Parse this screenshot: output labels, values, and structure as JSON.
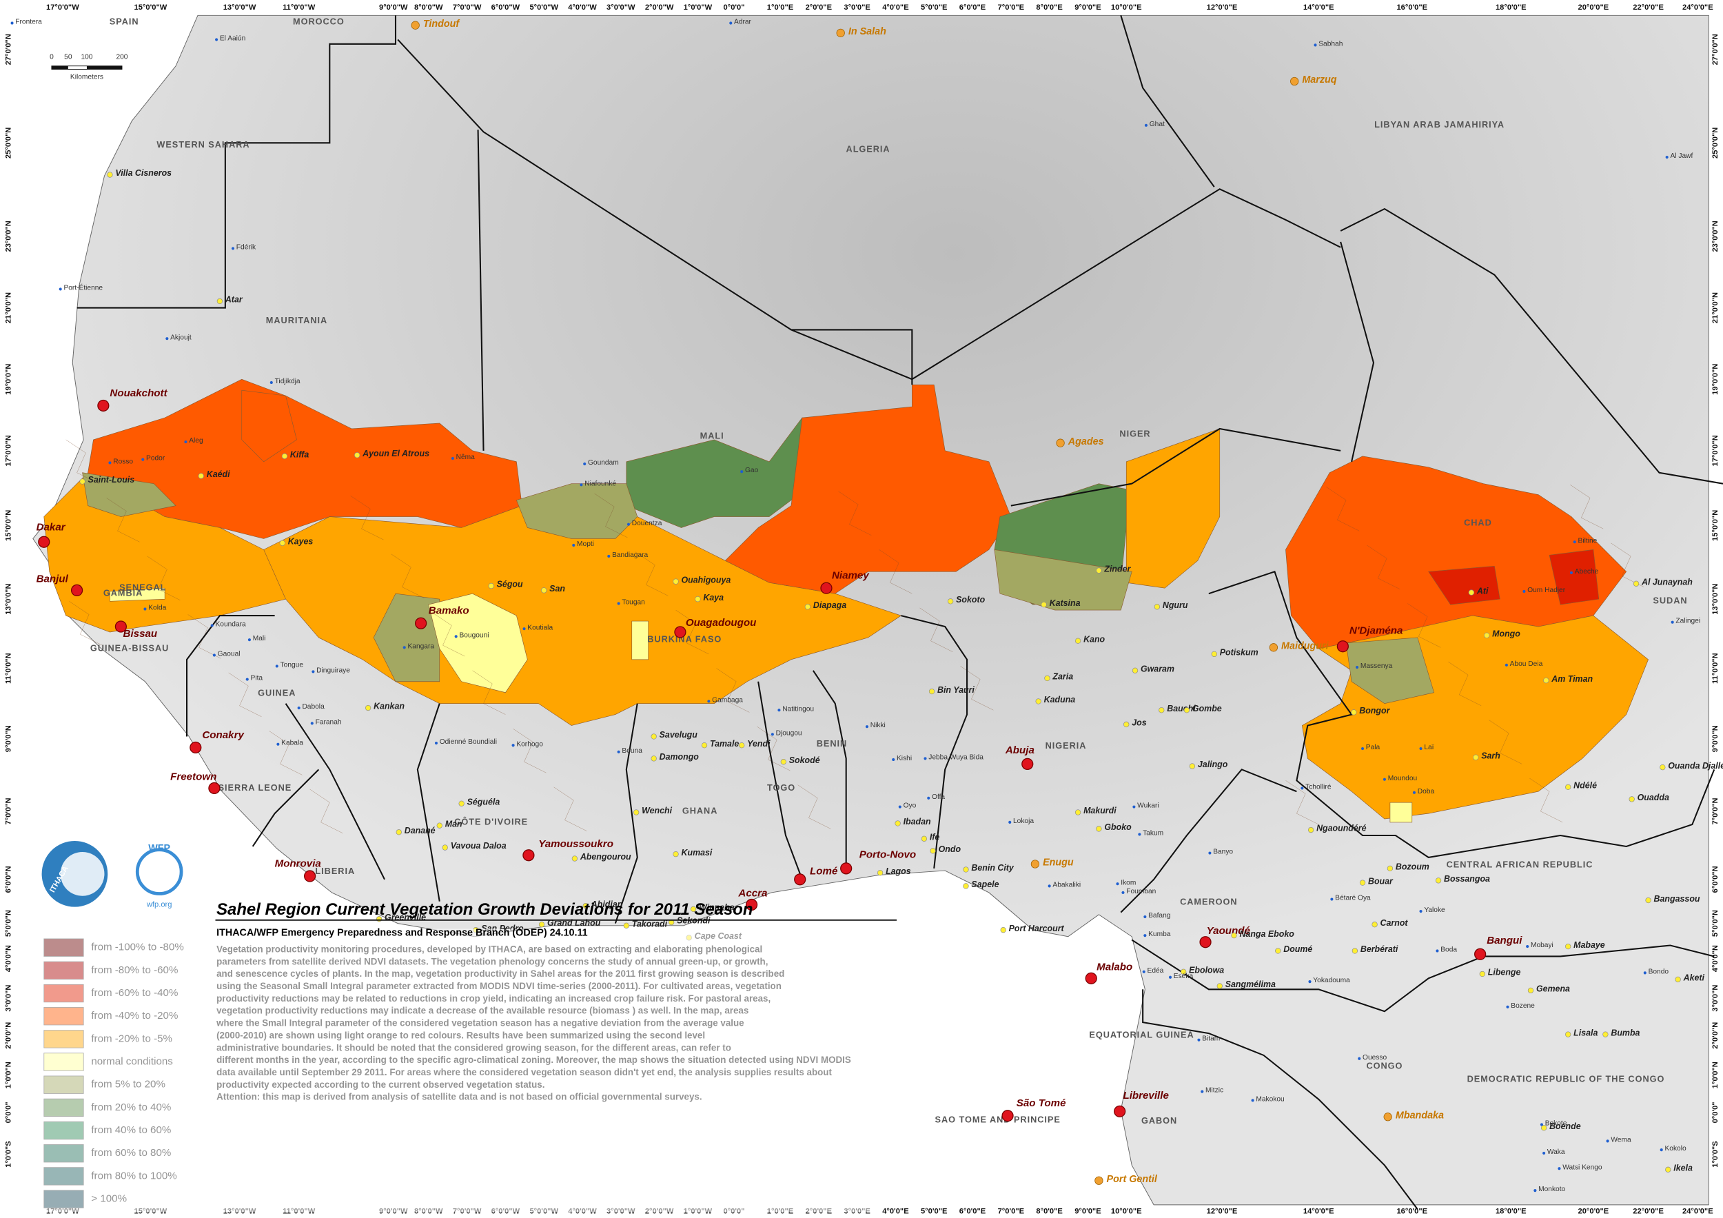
{
  "title": "Sahel Region Current Vegetation Growth Deviations for 2011 Season",
  "subtitle": "ITHACA/WFP Emergency Preparedness and Response Branch (ODEP)   24.10.11",
  "description": [
    "Vegetation productivity monitoring procedures, developed by ITHACA, are based on extracting and elaborating phenological",
    "parameters from satellite derived NDVI datasets. The vegetation phenology concerns the study of annual  green-up, or growth,",
    "and senescence cycles of plants. In the map, vegetation productivity in Sahel areas for the  2011 first growing season is described",
    "using the Seasonal Small Integral parameter extracted from MODIS NDVI time-series (2000-2011). For cultivated areas, vegetation",
    "productivity reductions may be  related to reductions in crop yield, indicating an increased crop failure risk. For pastoral areas,",
    "vegetation productivity reductions  may indicate a decrease of the available resource (biomass ) as well. In the map, areas",
    "where the Small Integral parameter of the considered vegetation season has a negative deviation from the average value",
    "(2000-2010) are shown using light orange to red colours. Results have been summarized using the second level",
    "administrative  boundaries. It should be noted that the considered growing season, for the different areas, can refer to",
    "different months in the year, according to the specific agro-climatical zoning.  Moreover, the map shows the situation detected using NDVI MODIS",
    "data available until September 29 2011. For areas where the considered vegetation season didn't yet end, the analysis supplies results about",
    "productivity expected according to the current observed vegetation status.",
    "Attention: this map is derived from analysis of satellite data and is not based on official governmental surveys."
  ],
  "legend": [
    {
      "label": "from -100% to -80%",
      "color": "#6b0000"
    },
    {
      "label": "from -80% to -60%",
      "color": "#a80000"
    },
    {
      "label": "from -60% to -40%",
      "color": "#e02000"
    },
    {
      "label": "from -40% to -20%",
      "color": "#ff5a00"
    },
    {
      "label": "from -20% to -5%",
      "color": "#ffa500"
    },
    {
      "label": "normal conditions",
      "color": "#ffff99"
    },
    {
      "label": "from 5% to 20%",
      "color": "#a3a862"
    },
    {
      "label": "from 20% to 40%",
      "color": "#5e8f4e"
    },
    {
      "label": "from 40% to 60%",
      "color": "#2e8b57"
    },
    {
      "label": "from 60% to 80%",
      "color": "#1f6f5a"
    },
    {
      "label": "from 80% to 100%",
      "color": "#1b5e5e"
    },
    {
      "label": "> 100%",
      "color": "#1a4a5a"
    }
  ],
  "logos": [
    "ITHACA",
    "WFP",
    "wfp.org"
  ],
  "scale_bar": {
    "ticks": [
      "0",
      "50",
      "100",
      "200"
    ],
    "unit": "Kilometers"
  },
  "longitude_labels": [
    "17°0'0\"W",
    "15°0'0\"W",
    "13°0'0\"W",
    "11°0'0\"W",
    "9°0'0\"W",
    "8°0'0\"W",
    "7°0'0\"W",
    "6°0'0\"W",
    "5°0'0\"W",
    "4°0'0\"W",
    "3°0'0\"W",
    "2°0'0\"W",
    "1°0'0\"W",
    "0°0'0\"",
    "1°0'0\"E",
    "2°0'0\"E",
    "3°0'0\"E",
    "4°0'0\"E",
    "5°0'0\"E",
    "6°0'0\"E",
    "7°0'0\"E",
    "8°0'0\"E",
    "9°0'0\"E",
    "10°0'0\"E",
    "12°0'0\"E",
    "14°0'0\"E",
    "16°0'0\"E",
    "18°0'0\"E",
    "20°0'0\"E",
    "22°0'0\"E",
    "24°0'0\"E"
  ],
  "latitude_labels": [
    "27°0'0\"N",
    "25°0'0\"N",
    "23°0'0\"N",
    "21°0'0\"N",
    "19°0'0\"N",
    "17°0'0\"N",
    "15°0'0\"N",
    "13°0'0\"N",
    "11°0'0\"N",
    "9°0'0\"N",
    "7°0'0\"N",
    "6°0'0\"N",
    "5°0'0\"N",
    "4°0'0\"N",
    "3°0'0\"N",
    "2°0'0\"N",
    "1°0'0\"N",
    "0°0'0\"",
    "1°0'0\"S"
  ],
  "countries": [
    "SPAIN",
    "MOROCCO",
    "WESTERN SAHARA",
    "ALGERIA",
    "LIBYAN ARAB JAMAHIRIYA",
    "MAURITANIA",
    "MALI",
    "NIGER",
    "CHAD",
    "SUDAN",
    "SENEGAL",
    "GAMBIA",
    "GUINEA-BISSAU",
    "GUINEA",
    "SIERRA LEONE",
    "LIBERIA",
    "CÔTE D'IVOIRE",
    "BURKINA FASO",
    "GHANA",
    "TOGO",
    "BENIN",
    "NIGERIA",
    "CAMEROON",
    "CENTRAL AFRICAN REPUBLIC",
    "EQUATORIAL GUINEA",
    "GABON",
    "CONGO",
    "DEMOCRATIC REPUBLIC OF THE CONGO",
    "SAO TOME AND PRINCIPE"
  ],
  "capitals": [
    "Nouakchott",
    "Dakar",
    "Banjul",
    "Bissau",
    "Conakry",
    "Freetown",
    "Monrovia",
    "Bamako",
    "Ouagadougou",
    "Niamey",
    "Yamoussoukro",
    "Accra",
    "Lomé",
    "Porto-Novo",
    "Abuja",
    "N'Djaména",
    "Malabo",
    "Yaoundé",
    "Bangui",
    "São Tomé",
    "Libreville"
  ],
  "major_towns": [
    "Tindouf",
    "In Salah",
    "Marzuq",
    "Agades",
    "Maiduguri",
    "Enugu",
    "Port Gentil",
    "Mbandaka"
  ],
  "towns": [
    "Villa Cisneros",
    "Atar",
    "Kiffa",
    "Ayoun El Atrous",
    "Kaédi",
    "Saint-Louis",
    "Kayes",
    "Ségou",
    "San",
    "Ouahigouya",
    "Kaya",
    "Diapaga",
    "Sokoto",
    "Zinder",
    "Katsina",
    "Kano",
    "Nguru",
    "Potiskum",
    "Gwaram",
    "Bauchi",
    "Gombe",
    "Kaduna",
    "Zaria",
    "Jos",
    "Bin Yauri",
    "Kankan",
    "Savelugu",
    "Tamale",
    "Yendi",
    "Damongo",
    "Sokodé",
    "Séguéla",
    "Man",
    "Danané",
    "Vavoua Daloa",
    "Kumasi",
    "Wenchi",
    "Abengourou",
    "Abidjan",
    "Grand Lahou",
    "Takoradi",
    "Sekondi",
    "Winneba",
    "Cape Coast",
    "San Pedro",
    "Greenville",
    "Ibadan",
    "Ife",
    "Ondo",
    "Lagos",
    "Sapele",
    "Benin City",
    "Port Harcourt",
    "Makurdi",
    "Gboko",
    "Jalingo",
    "Mongo",
    "Am Timan",
    "Sarh",
    "Bongor",
    "Ati",
    "Ngaoundéré",
    "Bouar",
    "Bozoum",
    "Bossangoa",
    "Carnot",
    "Berbérati",
    "Doumé",
    "Nanga Eboko",
    "Ebolowa",
    "Sangmélima",
    "Libenge",
    "Gemena",
    "Lisala",
    "Bumba",
    "Boende",
    "Ouanda Djallé",
    "Ndélé",
    "Ouadda",
    "Bangassou",
    "Mabaye",
    "Aketi",
    "Al Junaynah",
    "Ikela"
  ],
  "places": [
    "Frontera",
    "El Aaiún",
    "Adrar",
    "Sabhah",
    "Ghat",
    "Al Jawf",
    "Fdérik",
    "Port-Étienne",
    "Akjoujt",
    "Tidjikdja",
    "Nêma",
    "Podor",
    "Rosso",
    "Aleg",
    "Goundam",
    "Gao",
    "Niafounké",
    "Douentza",
    "Mopti",
    "Bandiagara",
    "Tougan",
    "Koutiala",
    "Bougouni",
    "Kangara",
    "Koundara",
    "Kolda",
    "Mali",
    "Gaoual",
    "Tongue",
    "Dinguiraye",
    "Pita",
    "Dabola",
    "Faranah",
    "Kabala",
    "Korhogo",
    "Odienné Boundiali",
    "Bouna",
    "Gambaga",
    "Natitingou",
    "Djougou",
    "Nikki",
    "Kishi",
    "Jebba Wuya Bida",
    "Oyo",
    "Offa",
    "Lokoja",
    "Abakaliki",
    "Ikom",
    "Foumban",
    "Bafang",
    "Kumba",
    "Edéa",
    "Eséka",
    "Bitam",
    "Mitzic",
    "Makokou",
    "Ouesso",
    "Yokadouma",
    "Bétaré Oya",
    "Yaloke",
    "Boda",
    "Mobayi",
    "Bondo",
    "Bozene",
    "Wema",
    "Bokote",
    "Monkoto",
    "Waka",
    "Watsi Kengo",
    "Kokolo",
    "Zalingei",
    "Biltine",
    "Abeche",
    "Oum Hadjer",
    "Abou Deia",
    "Massenya",
    "Moundou",
    "Doba",
    "Laï",
    "Pala",
    "Tcholliré",
    "Banyo",
    "Wukari",
    "Takum"
  ]
}
